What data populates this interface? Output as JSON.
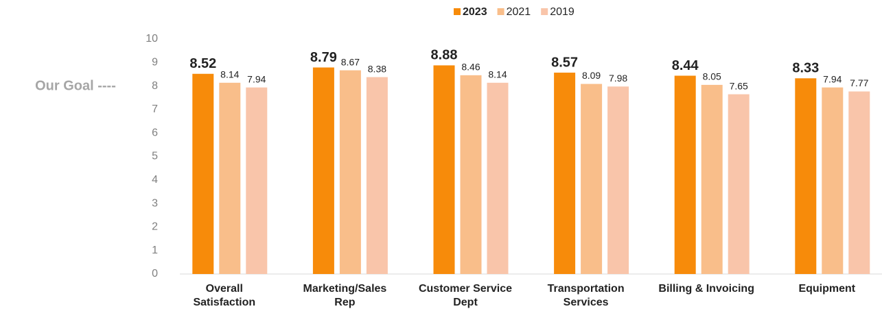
{
  "chart_data": {
    "type": "bar",
    "annotation": "Our Goal ----",
    "categories": [
      [
        "Overall",
        "Satisfaction"
      ],
      [
        "Marketing/Sales",
        "Rep"
      ],
      [
        "Customer Service",
        "Dept"
      ],
      [
        "Transportation",
        "Services"
      ],
      [
        "Billing & Invoicing"
      ],
      [
        "Equipment"
      ]
    ],
    "series": [
      {
        "name": "2023",
        "color": "#f78b0a",
        "values": [
          8.52,
          8.79,
          8.88,
          8.57,
          8.44,
          8.33
        ]
      },
      {
        "name": "2021",
        "color": "#f9be8a",
        "values": [
          8.14,
          8.67,
          8.46,
          8.09,
          8.05,
          7.94
        ]
      },
      {
        "name": "2019",
        "color": "#f9c5aa",
        "values": [
          7.94,
          8.38,
          8.14,
          7.98,
          7.65,
          7.77
        ]
      }
    ],
    "ylim": [
      0,
      10
    ],
    "yticks": [
      0,
      1,
      2,
      3,
      4,
      5,
      6,
      7,
      8,
      9,
      10
    ],
    "legend": "top"
  }
}
